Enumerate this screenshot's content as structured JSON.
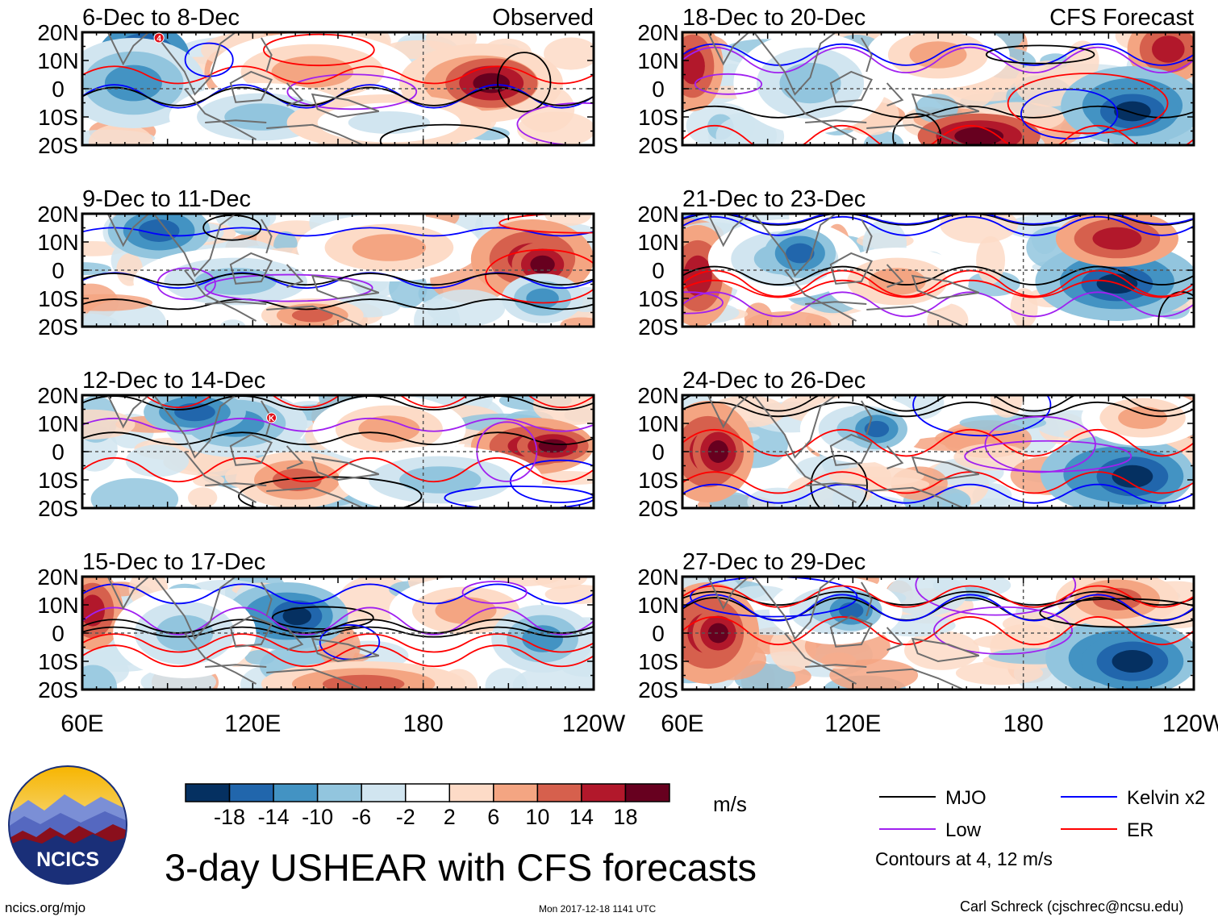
{
  "chart_data": {
    "type": "heatmap",
    "title": "3-day USHEAR with CFS forecasts",
    "units": "m/s",
    "column_labels": {
      "left": "Observed",
      "right": "CFS Forecast"
    },
    "y_ticks": [
      "20N",
      "10N",
      "0",
      "10S",
      "20S"
    ],
    "x_ticks": [
      "60E",
      "120E",
      "180",
      "120W"
    ],
    "x_range_deg_lon": [
      60,
      240
    ],
    "y_range_deg_lat": [
      -20,
      20
    ],
    "panels": [
      {
        "period": "6-Dec to 8-Dec",
        "source": "Observed",
        "tc_marker": "4"
      },
      {
        "period": "9-Dec to 11-Dec",
        "source": "Observed"
      },
      {
        "period": "12-Dec to 14-Dec",
        "source": "Observed",
        "tc_marker": "K"
      },
      {
        "period": "15-Dec to 17-Dec",
        "source": "Observed"
      },
      {
        "period": "18-Dec to 20-Dec",
        "source": "CFS Forecast"
      },
      {
        "period": "21-Dec to 23-Dec",
        "source": "CFS Forecast"
      },
      {
        "period": "24-Dec to 26-Dec",
        "source": "CFS Forecast"
      },
      {
        "period": "27-Dec to 29-Dec",
        "source": "CFS Forecast"
      }
    ],
    "colorbar": {
      "labels": [
        "-18",
        "-14",
        "-10",
        "-6",
        "-2",
        "2",
        "6",
        "10",
        "14",
        "18"
      ],
      "colors": [
        "#053061",
        "#2166ac",
        "#4393c3",
        "#92c5de",
        "#d1e5f0",
        "#ffffff",
        "#fddbc7",
        "#f4a582",
        "#d6604d",
        "#b2182b",
        "#67001f"
      ]
    },
    "legend": [
      {
        "name": "MJO",
        "color": "#000000"
      },
      {
        "name": "Kelvin x2",
        "color": "#0000ff"
      },
      {
        "name": "Low",
        "color": "#a020f0"
      },
      {
        "name": "ER",
        "color": "#ff0000"
      }
    ],
    "contour_note": "Contours at 4, 12 m/s"
  },
  "logo": {
    "text": "NCICS"
  },
  "footer": {
    "url": "ncics.org/mjo",
    "timestamp": "Mon 2017-12-18 1141 UTC",
    "credit": "Carl Schreck (cjschrec@ncsu.edu)"
  }
}
